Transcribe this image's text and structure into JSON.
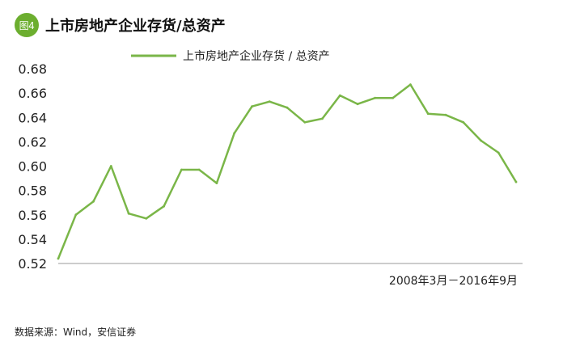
{
  "header": {
    "badge": "图4",
    "title": "上市房地产企业存货/总资产"
  },
  "source": "数据来源：Wind，安信证券",
  "colors": {
    "line": "#7ab648",
    "badge": "#6cae2f",
    "axis": "#999999"
  },
  "chart_data": {
    "type": "line",
    "title": "上市房地产企业存货/总资产",
    "xlabel": "2008年3月－2016年9月",
    "ylabel": "",
    "ylim": [
      0.52,
      0.68
    ],
    "yticks": [
      0.52,
      0.54,
      0.56,
      0.58,
      0.6,
      0.62,
      0.64,
      0.66,
      0.68
    ],
    "ytick_labels": [
      "0.52",
      "0.54",
      "0.56",
      "0.58",
      "0.60",
      "0.62",
      "0.64",
      "0.66",
      "0.68"
    ],
    "grid": false,
    "legend": "top-center",
    "series": [
      {
        "name": "上市房地产企业存货 / 总资产",
        "values": [
          0.524,
          0.56,
          0.571,
          0.6,
          0.561,
          0.557,
          0.567,
          0.597,
          0.597,
          0.586,
          0.627,
          0.649,
          0.653,
          0.648,
          0.636,
          0.639,
          0.658,
          0.651,
          0.656,
          0.656,
          0.667,
          0.643,
          0.642,
          0.636,
          0.621,
          0.611,
          0.587
        ]
      }
    ]
  }
}
